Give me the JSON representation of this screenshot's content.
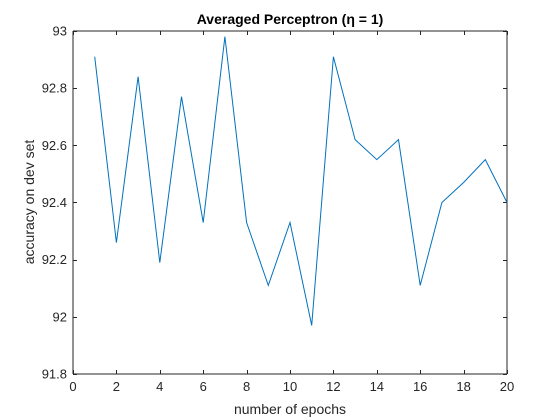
{
  "chart_data": {
    "type": "line",
    "title": "Averaged Perceptron (η = 1)",
    "xlabel": "number of epochs",
    "ylabel": "accuracy on dev set",
    "xlim": [
      0,
      20
    ],
    "ylim": [
      91.8,
      93
    ],
    "xticks": [
      0,
      2,
      4,
      6,
      8,
      10,
      12,
      14,
      16,
      18,
      20
    ],
    "yticks": [
      91.8,
      92,
      92.2,
      92.4,
      92.6,
      92.8,
      93
    ],
    "xtick_labels": [
      "0",
      "2",
      "4",
      "6",
      "8",
      "10",
      "12",
      "14",
      "16",
      "18",
      "20"
    ],
    "ytick_labels": [
      "91.8",
      "92",
      "92.2",
      "92.4",
      "92.6",
      "92.8",
      "93"
    ],
    "grid": false,
    "series": [
      {
        "color": "#0072bd",
        "x": [
          1,
          2,
          3,
          4,
          5,
          6,
          7,
          8,
          9,
          10,
          11,
          12,
          13,
          14,
          15,
          16,
          17,
          18,
          19,
          20
        ],
        "y": [
          92.91,
          92.26,
          92.84,
          92.19,
          92.77,
          92.33,
          92.98,
          92.33,
          92.11,
          92.33,
          91.97,
          92.91,
          92.62,
          92.55,
          92.62,
          92.11,
          92.4,
          92.47,
          92.55,
          92.4
        ]
      }
    ]
  }
}
